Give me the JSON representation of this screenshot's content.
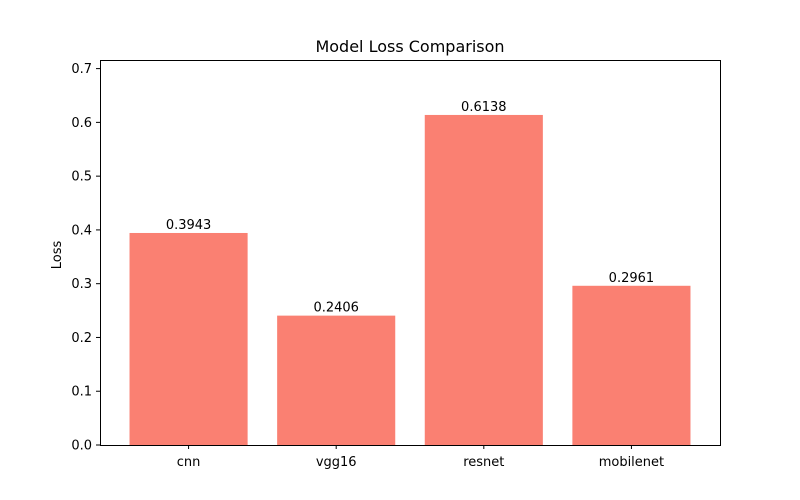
{
  "chart_data": {
    "type": "bar",
    "title": "Model Loss Comparison",
    "xlabel": "",
    "ylabel": "Loss",
    "categories": [
      "cnn",
      "vgg16",
      "resnet",
      "mobilenet"
    ],
    "values": [
      0.3943,
      0.2406,
      0.6138,
      0.2961
    ],
    "value_labels": [
      "0.3943",
      "0.2406",
      "0.6138",
      "0.2961"
    ],
    "ylim": [
      0,
      0.716
    ],
    "yticks": [
      0.0,
      0.1,
      0.2,
      0.3,
      0.4,
      0.5,
      0.6,
      0.7
    ],
    "ytick_labels": [
      "0.0",
      "0.1",
      "0.2",
      "0.3",
      "0.4",
      "0.5",
      "0.6",
      "0.7"
    ],
    "grid": false,
    "colors": {
      "bar": "#fa8072",
      "axis": "#000000",
      "background": "#ffffff"
    }
  }
}
